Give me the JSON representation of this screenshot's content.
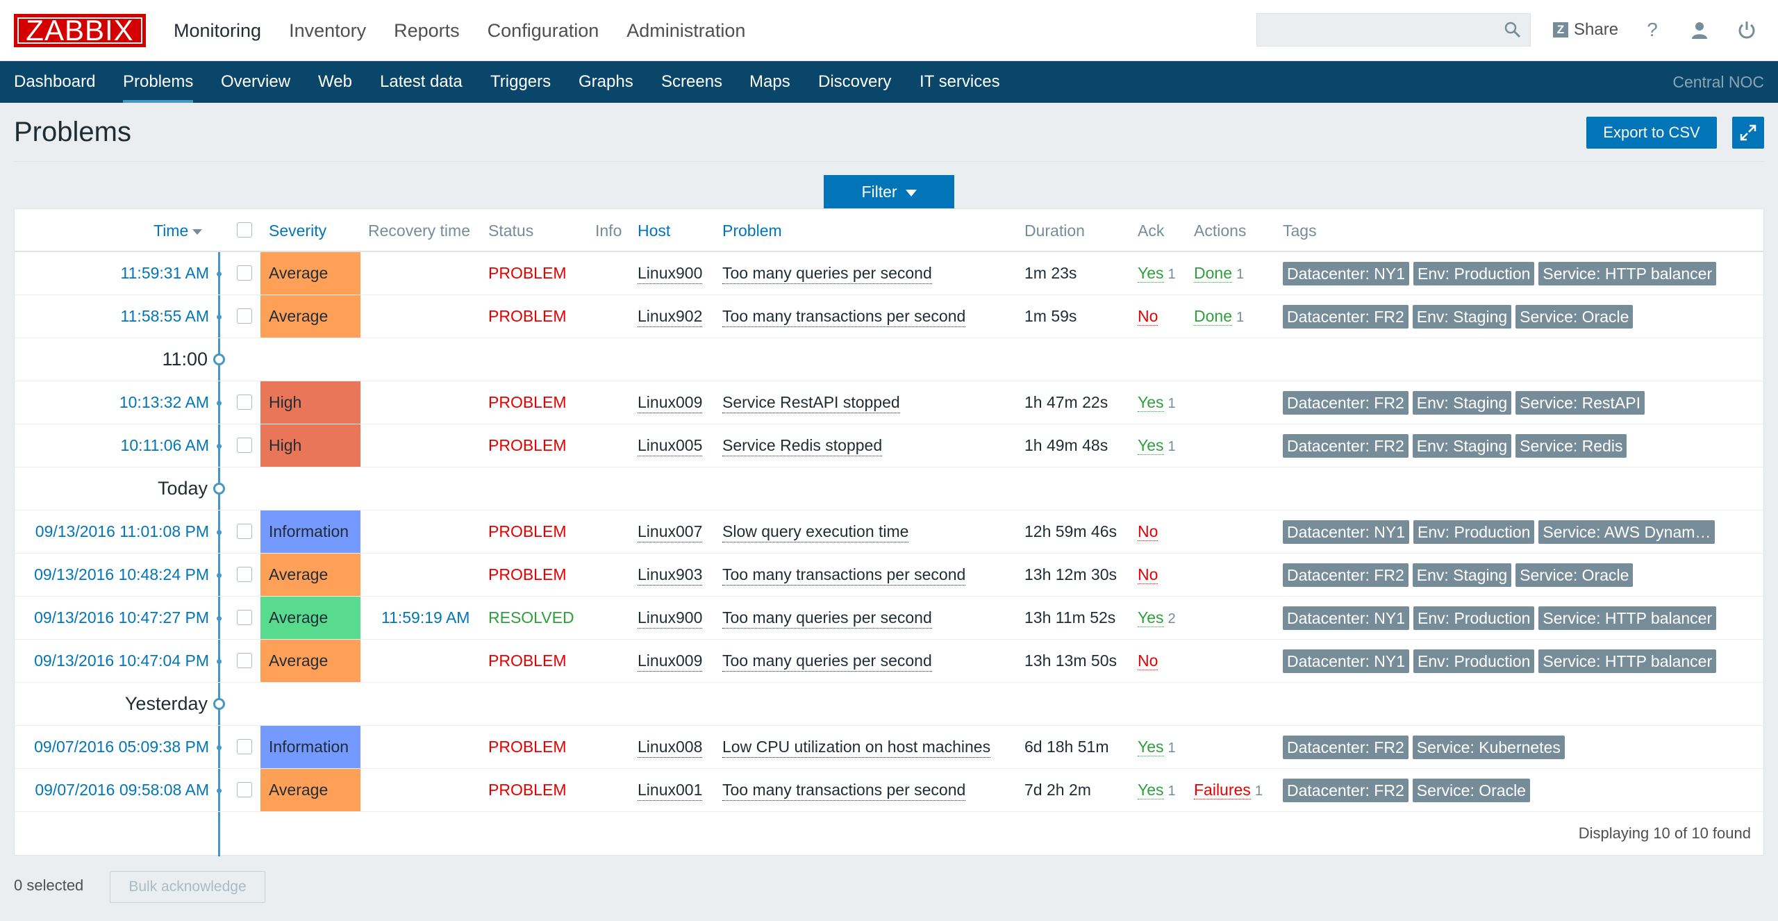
{
  "header": {
    "logo": "ZABBIX",
    "menu": [
      "Monitoring",
      "Inventory",
      "Reports",
      "Configuration",
      "Administration"
    ],
    "search_placeholder": "",
    "share_label": "Share",
    "help_glyph": "?"
  },
  "subnav": {
    "items": [
      "Dashboard",
      "Problems",
      "Overview",
      "Web",
      "Latest data",
      "Triggers",
      "Graphs",
      "Screens",
      "Maps",
      "Discovery",
      "IT services"
    ],
    "active": "Problems",
    "server_name": "Central NOC"
  },
  "page": {
    "title": "Problems",
    "export_label": "Export to CSV",
    "filter_label": "Filter"
  },
  "table": {
    "headers": {
      "time": "Time",
      "severity": "Severity",
      "recovery_time": "Recovery time",
      "status": "Status",
      "info": "Info",
      "host": "Host",
      "problem": "Problem",
      "duration": "Duration",
      "ack": "Ack",
      "actions": "Actions",
      "tags": "Tags"
    },
    "rows": [
      {
        "time": "11:59:31 AM",
        "severity": "Average",
        "recovery": "",
        "status": "PROBLEM",
        "host": "Linux900",
        "problem": "Too many queries per second",
        "duration": "1m 23s",
        "ack": "Yes",
        "ack_count": "1",
        "action": "Done",
        "action_count": "1",
        "tags": [
          "Datacenter: NY1",
          "Env: Production",
          "Service: HTTP balancer"
        ]
      },
      {
        "time": "11:58:55 AM",
        "severity": "Average",
        "recovery": "",
        "status": "PROBLEM",
        "host": "Linux902",
        "problem": "Too many transactions per second",
        "duration": "1m 59s",
        "ack": "No",
        "ack_count": "",
        "action": "Done",
        "action_count": "1",
        "tags": [
          "Datacenter: FR2",
          "Env: Staging",
          "Service: Oracle"
        ]
      },
      {
        "time": "10:13:32 AM",
        "severity": "High",
        "recovery": "",
        "status": "PROBLEM",
        "host": "Linux009",
        "problem": "Service RestAPI stopped",
        "duration": "1h 47m 22s",
        "ack": "Yes",
        "ack_count": "1",
        "action": "",
        "action_count": "",
        "tags": [
          "Datacenter: FR2",
          "Env: Staging",
          "Service: RestAPI"
        ]
      },
      {
        "time": "10:11:06 AM",
        "severity": "High",
        "recovery": "",
        "status": "PROBLEM",
        "host": "Linux005",
        "problem": "Service Redis stopped",
        "duration": "1h 49m 48s",
        "ack": "Yes",
        "ack_count": "1",
        "action": "",
        "action_count": "",
        "tags": [
          "Datacenter: FR2",
          "Env: Staging",
          "Service: Redis"
        ]
      },
      {
        "time": "09/13/2016 11:01:08 PM",
        "severity": "Information",
        "recovery": "",
        "status": "PROBLEM",
        "host": "Linux007",
        "problem": "Slow query execution time",
        "duration": "12h 59m 46s",
        "ack": "No",
        "ack_count": "",
        "action": "",
        "action_count": "",
        "tags": [
          "Datacenter: NY1",
          "Env: Production",
          "Service: AWS Dynam…"
        ]
      },
      {
        "time": "09/13/2016 10:48:24 PM",
        "severity": "Average",
        "recovery": "",
        "status": "PROBLEM",
        "host": "Linux903",
        "problem": "Too many transactions per second",
        "duration": "13h 12m 30s",
        "ack": "No",
        "ack_count": "",
        "action": "",
        "action_count": "",
        "tags": [
          "Datacenter: FR2",
          "Env: Staging",
          "Service: Oracle"
        ]
      },
      {
        "time": "09/13/2016 10:47:27 PM",
        "severity": "Average",
        "recovery": "11:59:19 AM",
        "status": "RESOLVED",
        "host": "Linux900",
        "problem": "Too many queries per second",
        "duration": "13h 11m 52s",
        "ack": "Yes",
        "ack_count": "2",
        "action": "",
        "action_count": "",
        "tags": [
          "Datacenter: NY1",
          "Env: Production",
          "Service: HTTP balancer"
        ]
      },
      {
        "time": "09/13/2016 10:47:04 PM",
        "severity": "Average",
        "recovery": "",
        "status": "PROBLEM",
        "host": "Linux009",
        "problem": "Too many queries per second",
        "duration": "13h 13m 50s",
        "ack": "No",
        "ack_count": "",
        "action": "",
        "action_count": "",
        "tags": [
          "Datacenter: NY1",
          "Env: Production",
          "Service: HTTP balancer"
        ]
      },
      {
        "time": "09/07/2016 05:09:38 PM",
        "severity": "Information",
        "recovery": "",
        "status": "PROBLEM",
        "host": "Linux008",
        "problem": "Low CPU utilization on host machines",
        "duration": "6d 18h 51m",
        "ack": "Yes",
        "ack_count": "1",
        "action": "",
        "action_count": "",
        "tags": [
          "Datacenter: FR2",
          "Service: Kubernetes"
        ]
      },
      {
        "time": "09/07/2016 09:58:08 AM",
        "severity": "Average",
        "recovery": "",
        "status": "PROBLEM",
        "host": "Linux001",
        "problem": "Too many transactions per second",
        "duration": "7d 2h 2m",
        "ack": "Yes",
        "ack_count": "1",
        "action": "Failures",
        "action_count": "1",
        "tags": [
          "Datacenter: FR2",
          "Service: Oracle"
        ]
      }
    ],
    "timeline_labels": [
      "11:00",
      "Today",
      "Yesterday"
    ],
    "footer": "Displaying 10 of 10 found"
  },
  "bottom": {
    "selected": "0 selected",
    "bulk_label": "Bulk acknowledge"
  },
  "colors": {
    "average": "#ffa059",
    "high": "#e97659",
    "information": "#7499ff",
    "resolved_severity": "#59db8f",
    "accent": "#0275b8",
    "subnav": "#0a466a",
    "logo": "#d40000"
  }
}
